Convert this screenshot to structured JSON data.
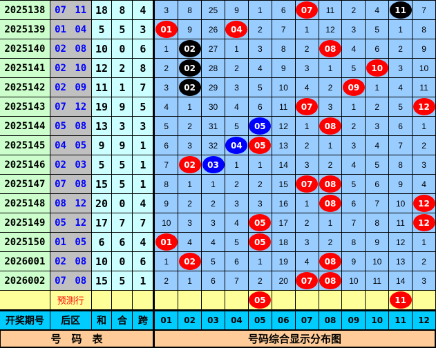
{
  "colors": {
    "red": "#ff0000",
    "black": "#000000",
    "blue": "#0000ff"
  },
  "rows": [
    {
      "period": "2025138",
      "rear": "07 11",
      "sum": "18",
      "he": "8",
      "kua": "4",
      "cells": [
        "3",
        "8",
        "25",
        "9",
        "1",
        "6",
        {
          "n": "07",
          "c": "red"
        },
        "11",
        "2",
        "4",
        {
          "n": "11",
          "c": "black"
        },
        "7"
      ]
    },
    {
      "period": "2025139",
      "rear": "01 04",
      "sum": "5",
      "he": "5",
      "kua": "3",
      "cells": [
        {
          "n": "01",
          "c": "red"
        },
        "9",
        "26",
        {
          "n": "04",
          "c": "red"
        },
        "2",
        "7",
        "1",
        "12",
        "3",
        "5",
        "1",
        "8"
      ]
    },
    {
      "period": "2025140",
      "rear": "02 08",
      "sum": "10",
      "he": "0",
      "kua": "6",
      "cells": [
        "1",
        {
          "n": "02",
          "c": "black"
        },
        "27",
        "1",
        "3",
        "8",
        "2",
        {
          "n": "08",
          "c": "red"
        },
        "4",
        "6",
        "2",
        "9"
      ]
    },
    {
      "period": "2025141",
      "rear": "02 10",
      "sum": "12",
      "he": "2",
      "kua": "8",
      "cells": [
        "2",
        {
          "n": "02",
          "c": "black"
        },
        "28",
        "2",
        "4",
        "9",
        "3",
        "1",
        "5",
        {
          "n": "10",
          "c": "red"
        },
        "3",
        "10"
      ]
    },
    {
      "period": "2025142",
      "rear": "02 09",
      "sum": "11",
      "he": "1",
      "kua": "7",
      "cells": [
        "3",
        {
          "n": "02",
          "c": "black"
        },
        "29",
        "3",
        "5",
        "10",
        "4",
        "2",
        {
          "n": "09",
          "c": "red"
        },
        "1",
        "4",
        "11"
      ]
    },
    {
      "period": "2025143",
      "rear": "07 12",
      "sum": "19",
      "he": "9",
      "kua": "5",
      "cells": [
        "4",
        "1",
        "30",
        "4",
        "6",
        "11",
        {
          "n": "07",
          "c": "red"
        },
        "3",
        "1",
        "2",
        "5",
        {
          "n": "12",
          "c": "red"
        }
      ]
    },
    {
      "period": "2025144",
      "rear": "05 08",
      "sum": "13",
      "he": "3",
      "kua": "3",
      "cells": [
        "5",
        "2",
        "31",
        "5",
        {
          "n": "05",
          "c": "blue"
        },
        "12",
        "1",
        {
          "n": "08",
          "c": "red"
        },
        "2",
        "3",
        "6",
        "1"
      ]
    },
    {
      "period": "2025145",
      "rear": "04 05",
      "sum": "9",
      "he": "9",
      "kua": "1",
      "cells": [
        "6",
        "3",
        "32",
        {
          "n": "04",
          "c": "blue"
        },
        {
          "n": "05",
          "c": "red"
        },
        "13",
        "2",
        "1",
        "3",
        "4",
        "7",
        "2"
      ]
    },
    {
      "period": "2025146",
      "rear": "02 03",
      "sum": "5",
      "he": "5",
      "kua": "1",
      "cells": [
        "7",
        {
          "n": "02",
          "c": "red"
        },
        {
          "n": "03",
          "c": "blue"
        },
        "1",
        "1",
        "14",
        "3",
        "2",
        "4",
        "5",
        "8",
        "3"
      ]
    },
    {
      "period": "2025147",
      "rear": "07 08",
      "sum": "15",
      "he": "5",
      "kua": "1",
      "cells": [
        "8",
        "1",
        "1",
        "2",
        "2",
        "15",
        {
          "n": "07",
          "c": "red"
        },
        {
          "n": "08",
          "c": "red"
        },
        "5",
        "6",
        "9",
        "4"
      ]
    },
    {
      "period": "2025148",
      "rear": "08 12",
      "sum": "20",
      "he": "0",
      "kua": "4",
      "cells": [
        "9",
        "2",
        "2",
        "3",
        "3",
        "16",
        "1",
        {
          "n": "08",
          "c": "red"
        },
        "6",
        "7",
        "10",
        {
          "n": "12",
          "c": "red"
        }
      ]
    },
    {
      "period": "2025149",
      "rear": "05 12",
      "sum": "17",
      "he": "7",
      "kua": "7",
      "cells": [
        "10",
        "3",
        "3",
        "4",
        {
          "n": "05",
          "c": "red"
        },
        "17",
        "2",
        "1",
        "7",
        "8",
        "11",
        {
          "n": "12",
          "c": "red"
        }
      ]
    },
    {
      "period": "2025150",
      "rear": "01 05",
      "sum": "6",
      "he": "6",
      "kua": "4",
      "cells": [
        {
          "n": "01",
          "c": "red"
        },
        "4",
        "4",
        "5",
        {
          "n": "05",
          "c": "red"
        },
        "18",
        "3",
        "2",
        "8",
        "9",
        "12",
        "1"
      ]
    },
    {
      "period": "2026001",
      "rear": "02 08",
      "sum": "10",
      "he": "0",
      "kua": "6",
      "cells": [
        "1",
        {
          "n": "02",
          "c": "red"
        },
        "5",
        "6",
        "1",
        "19",
        "4",
        {
          "n": "08",
          "c": "red"
        },
        "9",
        "10",
        "13",
        "2"
      ]
    },
    {
      "period": "2026002",
      "rear": "07 08",
      "sum": "15",
      "he": "5",
      "kua": "1",
      "cells": [
        "2",
        "1",
        "6",
        "7",
        "2",
        "20",
        {
          "n": "07",
          "c": "red"
        },
        {
          "n": "08",
          "c": "red"
        },
        "10",
        "11",
        "14",
        "3"
      ]
    }
  ],
  "prediction": {
    "label": "预测行",
    "cells": [
      "",
      "",
      "",
      "",
      {
        "n": "05",
        "c": "red"
      },
      "",
      "",
      "",
      "",
      "",
      {
        "n": "11",
        "c": "red"
      },
      ""
    ]
  },
  "header": {
    "period": "开奖期号",
    "rear": "后区",
    "sum": "和",
    "he": "合",
    "kua": "跨",
    "numbers": [
      "01",
      "02",
      "03",
      "04",
      "05",
      "06",
      "07",
      "08",
      "09",
      "10",
      "11",
      "12"
    ]
  },
  "footer": {
    "left": "号　码　表",
    "right": "号码综合显示分布图"
  }
}
